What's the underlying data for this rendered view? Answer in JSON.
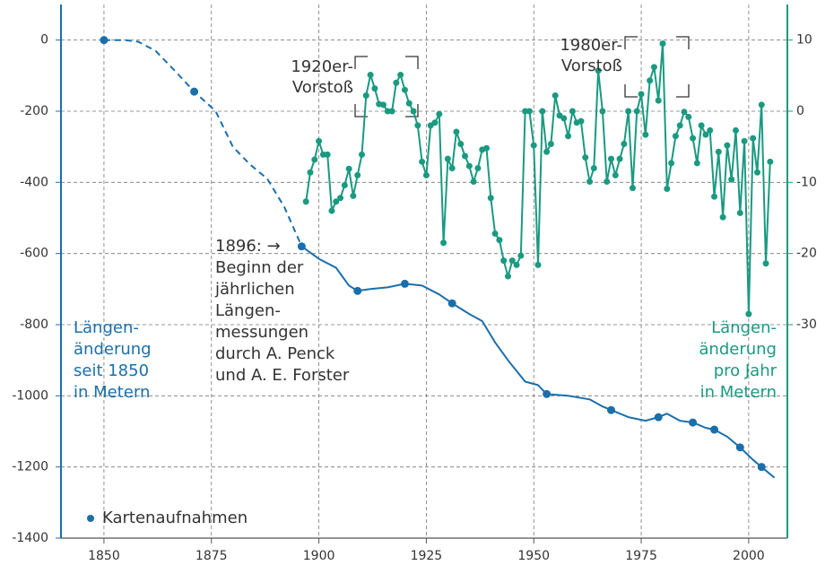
{
  "chart_data": {
    "type": "line",
    "xlim": [
      1840,
      2009
    ],
    "xticks": [
      1850,
      1875,
      1900,
      1925,
      1950,
      1975,
      2000
    ],
    "ylim": [
      -1400,
      100
    ],
    "yticks": [
      0,
      -200,
      -400,
      -600,
      -800,
      -1000,
      -1200,
      -1400
    ],
    "y2lim": [
      -60,
      15
    ],
    "y2ticks": [
      10,
      0,
      -10,
      -20,
      -30
    ],
    "grid": true,
    "ylabel": [
      "Längen-",
      "änderung",
      "seit 1850",
      "in Metern"
    ],
    "y2label": [
      "Längen-",
      "änderung",
      "pro Jahr",
      "in Metern"
    ],
    "annotations": [
      {
        "lines": [
          "1920er-",
          "Vorstoß"
        ],
        "x": 1917
      },
      {
        "lines": [
          "1980er-",
          "Vorstoß"
        ],
        "x": 1980
      },
      {
        "lines": [
          "1896: →",
          "Beginn der",
          "jährlichen",
          "Längen-",
          "messungen",
          "durch A. Penck",
          "und A. E. Forster"
        ],
        "x": 1896
      }
    ],
    "series": [
      {
        "color": "#1a6fab",
        "dash": true,
        "x": [
          1850,
          1855,
          1858,
          1862,
          1866,
          1871,
          1876,
          1880,
          1884,
          1888,
          1892,
          1896
        ],
        "values": [
          0,
          0,
          -5,
          -30,
          -80,
          -145,
          -200,
          -300,
          -350,
          -390,
          -470,
          -580
        ]
      },
      {
        "color": "#1a6fab",
        "x": [
          1896,
          1900,
          1904,
          1907,
          1909,
          1912,
          1916,
          1920,
          1924,
          1928,
          1931,
          1935,
          1938,
          1941,
          1944,
          1948,
          1951,
          1953,
          1958,
          1963,
          1966,
          1968,
          1972,
          1976,
          1979,
          1981,
          1984,
          1987,
          1990,
          1992,
          1995,
          1998,
          2001,
          2003,
          2006
        ],
        "values": [
          -580,
          -615,
          -640,
          -690,
          -705,
          -700,
          -695,
          -685,
          -690,
          -715,
          -740,
          -770,
          -790,
          -850,
          -900,
          -960,
          -970,
          -995,
          -1000,
          -1010,
          -1030,
          -1040,
          -1060,
          -1070,
          -1060,
          -1050,
          -1070,
          -1075,
          -1090,
          -1095,
          -1115,
          -1145,
          -1180,
          -1200,
          -1230
        ]
      },
      {
        "name": "Kartenaufnahmen",
        "color": "#1a6fab",
        "markers_only": true,
        "x": [
          1850,
          1871,
          1896,
          1909,
          1920,
          1931,
          1953,
          1968,
          1979,
          1987,
          1992,
          1998,
          2003
        ],
        "values": [
          0,
          -145,
          -580,
          -705,
          -685,
          -740,
          -995,
          -1040,
          -1060,
          -1075,
          -1095,
          -1145,
          -1200
        ]
      },
      {
        "color": "#1a9a80",
        "axis": "y2",
        "markers": true,
        "x": [
          1897,
          1898,
          1899,
          1900,
          1901,
          1902,
          1903,
          1904,
          1905,
          1906,
          1907,
          1908,
          1909,
          1910,
          1911,
          1912,
          1913,
          1914,
          1915,
          1916,
          1917,
          1918,
          1919,
          1920,
          1921,
          1922,
          1923,
          1924,
          1925,
          1926,
          1927,
          1928,
          1929,
          1930,
          1931,
          1932,
          1933,
          1934,
          1935,
          1936,
          1937,
          1938,
          1939,
          1940,
          1941,
          1942,
          1943,
          1944,
          1945,
          1946,
          1947,
          1948,
          1949,
          1950,
          1951,
          1952,
          1953,
          1954,
          1955,
          1956,
          1957,
          1958,
          1959,
          1960,
          1961,
          1962,
          1963,
          1964,
          1965,
          1966,
          1967,
          1968,
          1969,
          1970,
          1971,
          1972,
          1973,
          1974,
          1975,
          1976,
          1977,
          1978,
          1979,
          1980,
          1981,
          1982,
          1983,
          1984,
          1985,
          1986,
          1987,
          1988,
          1989,
          1990,
          1991,
          1992,
          1993,
          1994,
          1995,
          1996,
          1997,
          1998,
          1999,
          2000,
          2001,
          2002,
          2003,
          2004,
          2005
        ],
        "values": [
          -12.7,
          -8.6,
          -6.8,
          -4.2,
          -6.1,
          -6.1,
          -14,
          -12.7,
          -12.2,
          -10.4,
          -8.1,
          -11.9,
          -9,
          -6.1,
          2.2,
          5.1,
          3.2,
          1,
          0.9,
          0,
          0,
          4,
          5.1,
          3,
          1.1,
          0,
          -2,
          -7.1,
          -9,
          -2,
          -1.6,
          -0.4,
          -18.5,
          -6.7,
          -8,
          -2.9,
          -4.6,
          -6.3,
          -7.7,
          -9.9,
          -8,
          -5.4,
          -5.2,
          -12.2,
          -17.2,
          -18.1,
          -21,
          -23.2,
          -21,
          -21.6,
          -20.3,
          0,
          0,
          -4.8,
          -21.6,
          0,
          -5.7,
          -4.6,
          2.2,
          -0.6,
          -1,
          -3.5,
          0,
          -1.6,
          -1.4,
          -6.5,
          -9.9,
          -8,
          5.7,
          0,
          -9.9,
          -6.7,
          -9,
          -6.7,
          -4.6,
          0,
          -10.8,
          0,
          2.4,
          -3.3,
          4.3,
          6.2,
          1.5,
          9.5,
          -10.9,
          -7.3,
          -3.5,
          -2,
          -0.1,
          -0.8,
          -3.8,
          -7.3,
          -2,
          -3.3,
          -2.7,
          -12,
          -5.7,
          -14.9,
          -4.8,
          -9.6,
          -2.7,
          -14.3,
          -4.2,
          -28.5,
          -3.8,
          -8.6,
          0.9,
          -21.4,
          -7.1
        ]
      }
    ]
  }
}
